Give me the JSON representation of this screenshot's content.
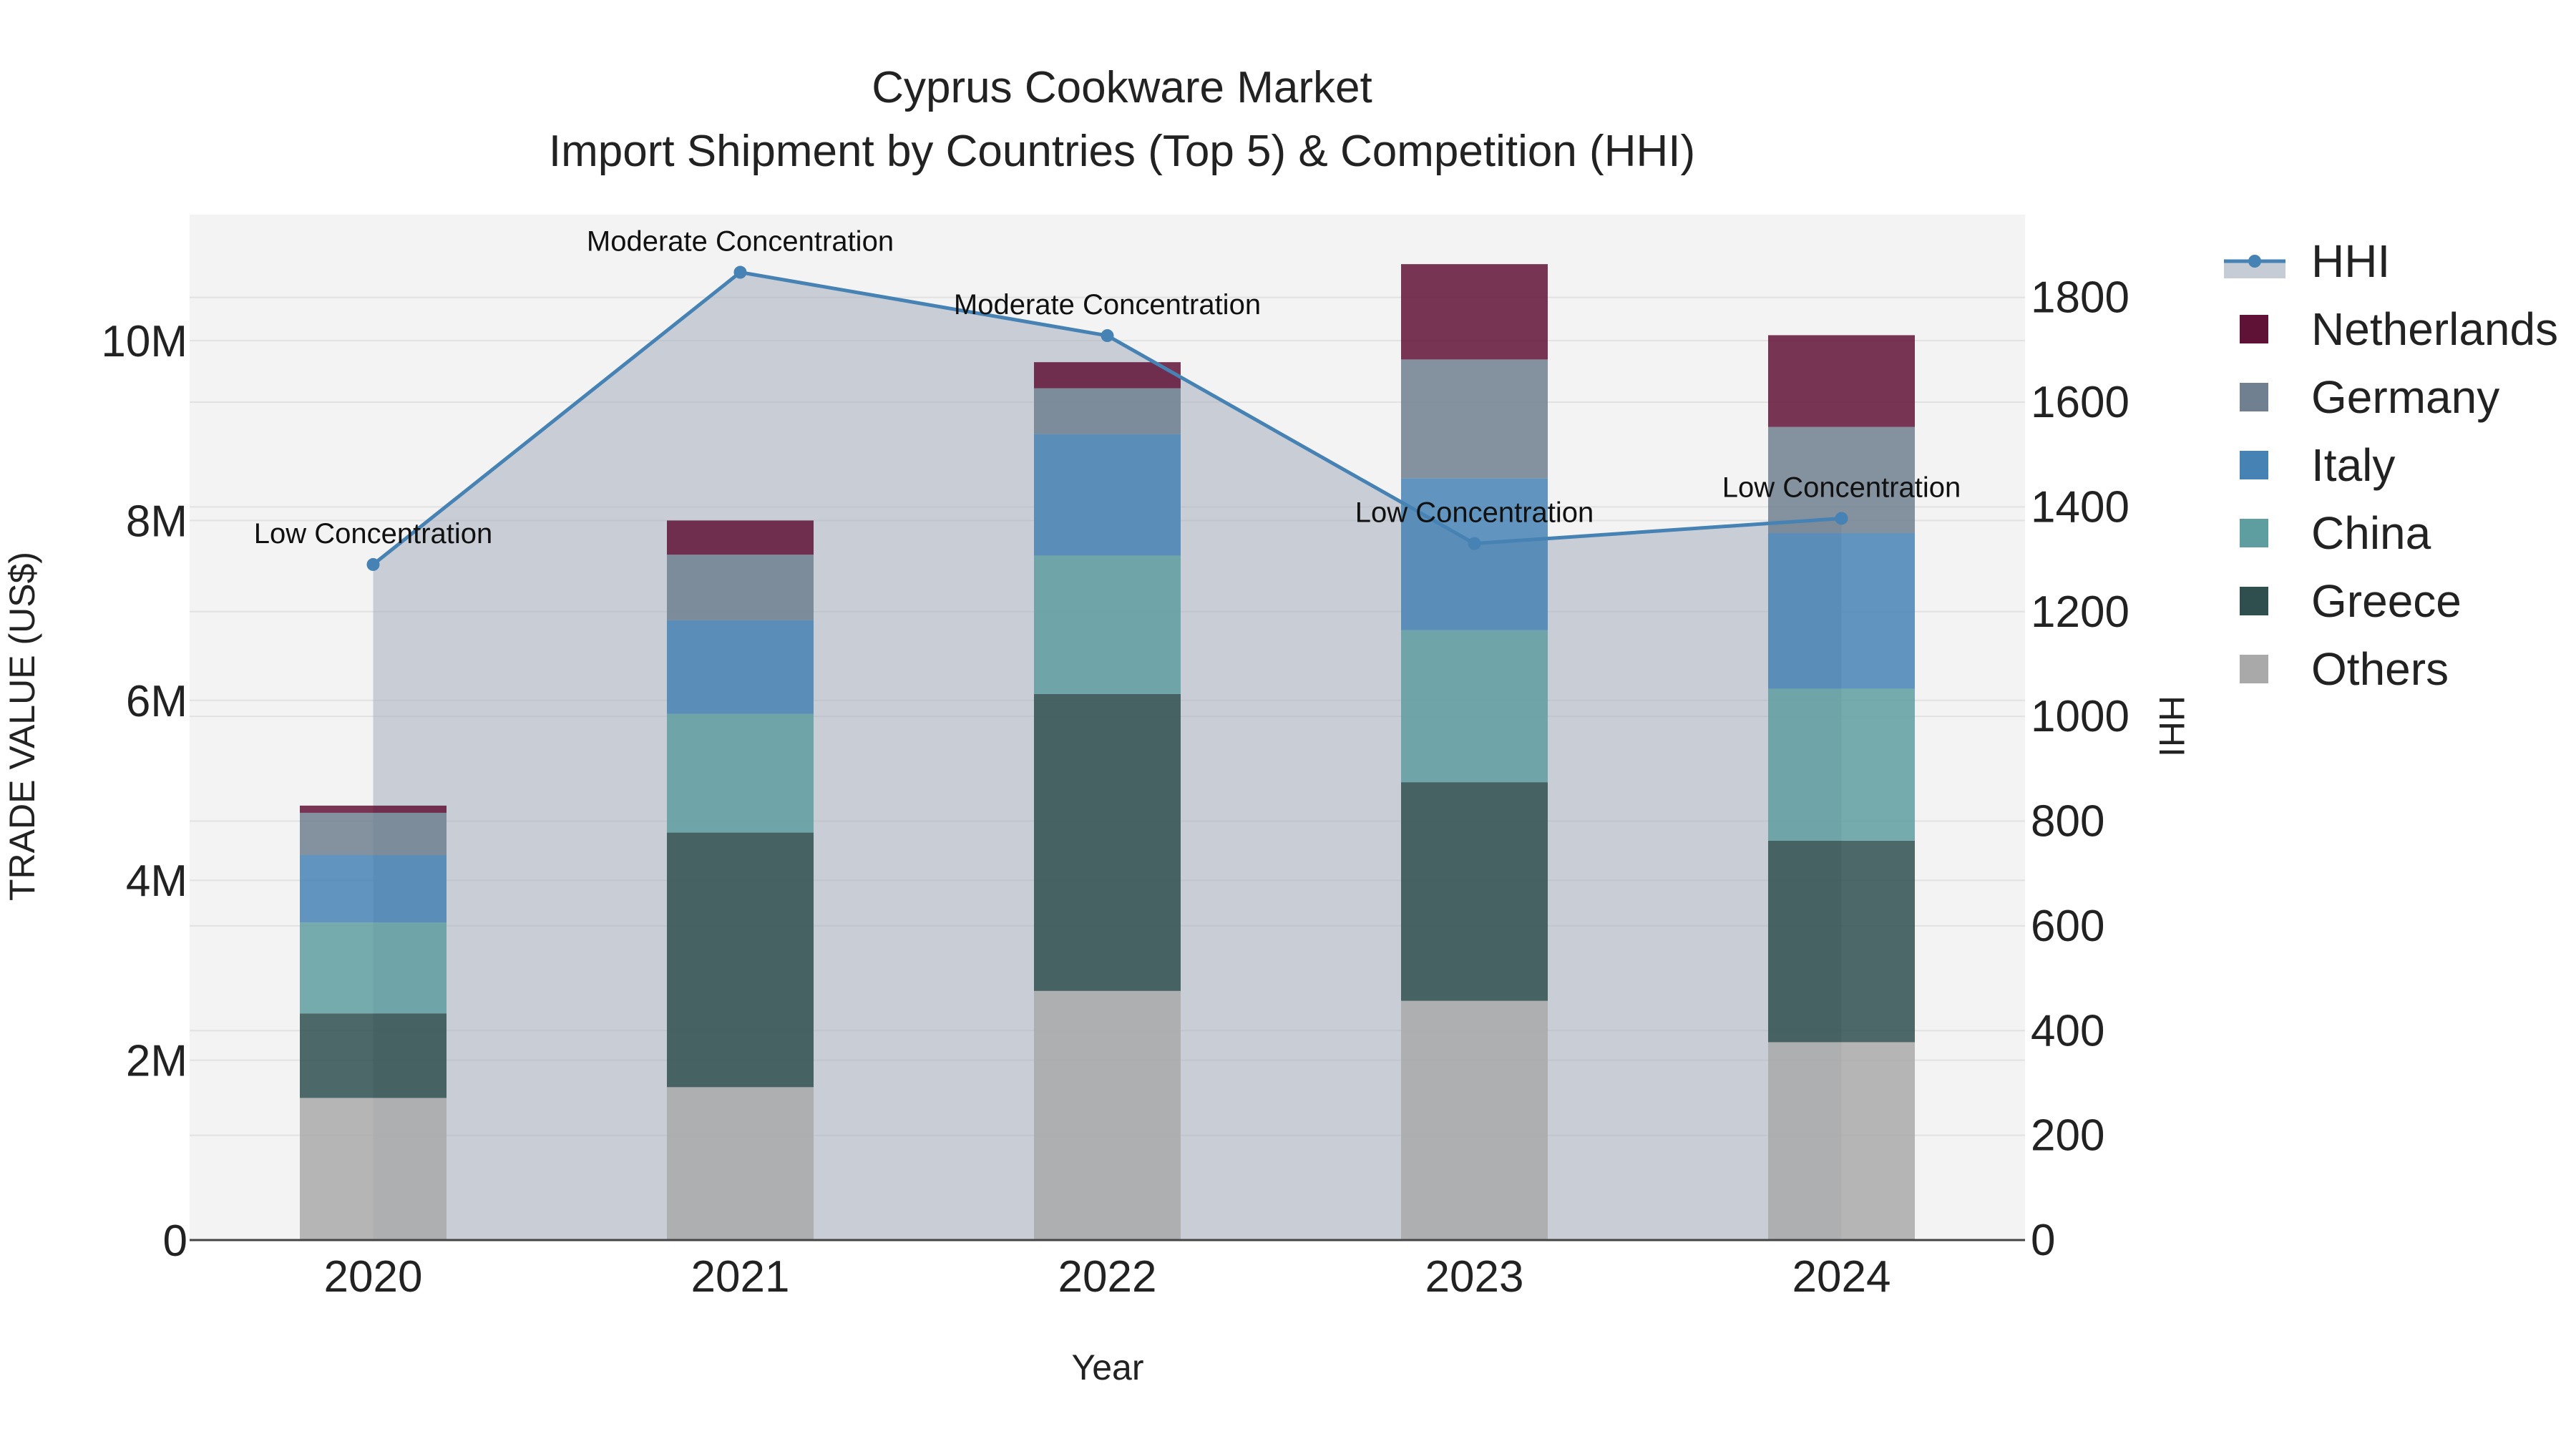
{
  "chart_data": {
    "type": "bar",
    "title": "Cyprus Cookware Market",
    "subtitle": "Import Shipment by Countries (Top 5) & Competition (HHI)",
    "xlabel": "Year",
    "ylabel": "TRADE VALUE (US$)",
    "y2label": "HHI",
    "categories": [
      "2020",
      "2021",
      "2022",
      "2023",
      "2024"
    ],
    "ylim": [
      0,
      11400000
    ],
    "y2lim": [
      0,
      1958
    ],
    "y_ticks": [
      0,
      2000000,
      4000000,
      6000000,
      8000000,
      10000000
    ],
    "y_tick_labels": [
      "0",
      "2M",
      "4M",
      "6M",
      "8M",
      "10M"
    ],
    "y2_ticks": [
      0,
      200,
      400,
      600,
      800,
      1000,
      1200,
      1400,
      1600,
      1800
    ],
    "y2_tick_labels": [
      "0",
      "200",
      "400",
      "600",
      "800",
      "1000",
      "1200",
      "1400",
      "1600",
      "1800"
    ],
    "series": [
      {
        "name": "Others",
        "color": "#a9a9a9",
        "values": [
          1580000,
          1700000,
          2770000,
          2660000,
          2200000
        ]
      },
      {
        "name": "Greece",
        "color": "#2f4f4f",
        "values": [
          940000,
          2830000,
          3300000,
          2430000,
          2240000
        ]
      },
      {
        "name": "China",
        "color": "#5f9ea0",
        "values": [
          1010000,
          1320000,
          1540000,
          1690000,
          1690000
        ]
      },
      {
        "name": "Italy",
        "color": "#4682b4",
        "values": [
          750000,
          1040000,
          1350000,
          1690000,
          1730000
        ]
      },
      {
        "name": "Germany",
        "color": "#708090",
        "values": [
          470000,
          730000,
          510000,
          1320000,
          1180000
        ]
      },
      {
        "name": "Netherlands",
        "color": "#601236",
        "values": [
          80000,
          380000,
          290000,
          1060000,
          1020000
        ]
      }
    ],
    "hhi": {
      "name": "HHI",
      "color": "#4682b4",
      "values": [
        1290,
        1848,
        1727,
        1330,
        1378
      ],
      "labels": [
        "Low Concentration",
        "Moderate Concentration",
        "Moderate Concentration",
        "Low Concentration",
        "Low Concentration"
      ]
    },
    "legend_order": [
      "HHI",
      "Netherlands",
      "Germany",
      "Italy",
      "China",
      "Greece",
      "Others"
    ],
    "legend_position": "right",
    "grid": true,
    "plot_background": "#f3f3f3"
  }
}
